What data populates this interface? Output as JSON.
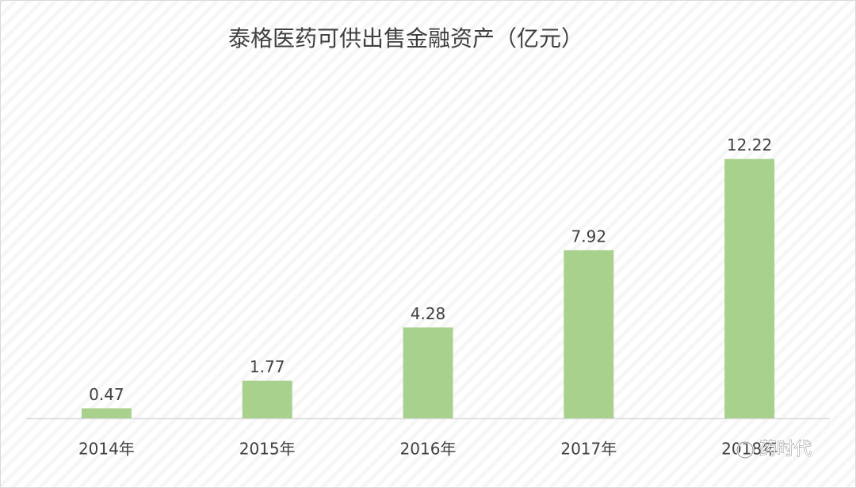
{
  "chart_data": {
    "type": "bar",
    "title": "泰格医药可供出售金融资产（亿元）",
    "categories": [
      "2014年",
      "2015年",
      "2016年",
      "2017年",
      "2018年"
    ],
    "values": [
      0.47,
      1.77,
      4.28,
      7.92,
      12.22
    ],
    "color": "#a9d18e",
    "ylim": [
      0,
      14
    ]
  },
  "watermark": "药时代"
}
